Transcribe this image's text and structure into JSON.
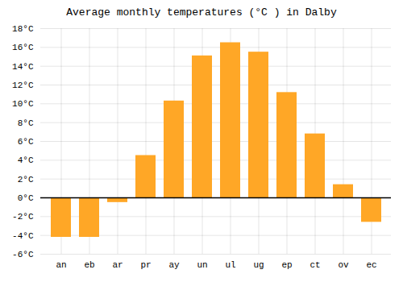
{
  "chart_data": {
    "type": "bar",
    "title": "Average monthly temperatures (°C ) in Dalby",
    "categories": [
      "an",
      "eb",
      "ar",
      "pr",
      "ay",
      "un",
      "ul",
      "ug",
      "ep",
      "ct",
      "ov",
      "ec"
    ],
    "values": [
      -4.2,
      -4.2,
      -0.5,
      4.5,
      10.3,
      15.1,
      16.5,
      15.5,
      11.2,
      6.8,
      1.4,
      -2.6
    ],
    "color": "#FFA726",
    "ylim": [
      -6,
      18
    ],
    "yticks": [
      {
        "value": -6,
        "label": "-6°C"
      },
      {
        "value": -4,
        "label": "-4°C"
      },
      {
        "value": -2,
        "label": "-2°C"
      },
      {
        "value": 0,
        "label": "0°C"
      },
      {
        "value": 2,
        "label": "2°C"
      },
      {
        "value": 4,
        "label": "4°C"
      },
      {
        "value": 6,
        "label": "6°C"
      },
      {
        "value": 8,
        "label": "8°C"
      },
      {
        "value": 10,
        "label": "10°C"
      },
      {
        "value": 12,
        "label": "12°C"
      },
      {
        "value": 14,
        "label": "14°C"
      },
      {
        "value": 16,
        "label": "16°C"
      },
      {
        "value": 18,
        "label": "18°C"
      }
    ],
    "grid": true
  }
}
